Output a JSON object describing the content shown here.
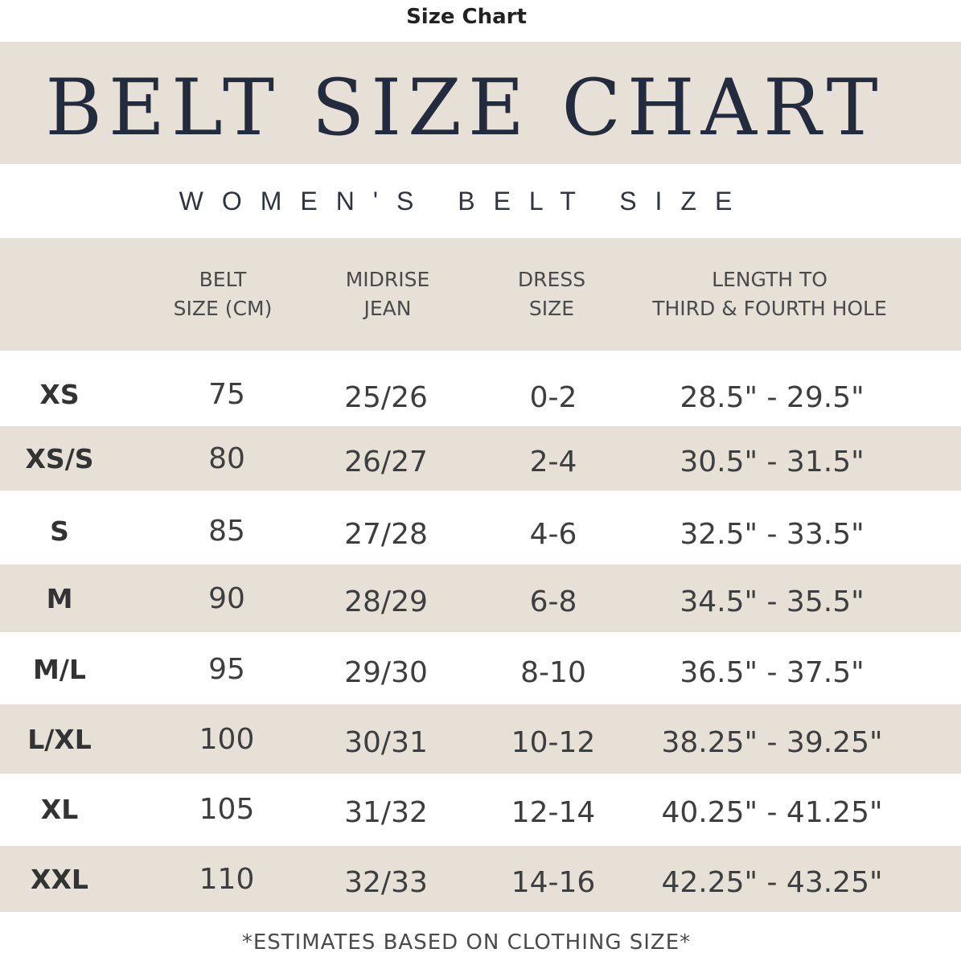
{
  "page_title": "Size Chart",
  "banner_title": "BELT SIZE CHART",
  "subtitle": "WOMEN'S BELT SIZE",
  "columns": [
    {
      "line1": "BELT",
      "line2": "SIZE (CM)"
    },
    {
      "line1": "MIDRISE",
      "line2": "JEAN"
    },
    {
      "line1": "DRESS",
      "line2": "SIZE"
    },
    {
      "line1": "LENGTH TO",
      "line2": "THIRD & FOURTH HOLE"
    }
  ],
  "rows": [
    {
      "size": "XS",
      "cm": "75",
      "jean": "25/26",
      "dress": "0-2",
      "length": "28.5\" - 29.5\""
    },
    {
      "size": "XS/S",
      "cm": "80",
      "jean": "26/27",
      "dress": "2-4",
      "length": "30.5\" - 31.5\""
    },
    {
      "size": "S",
      "cm": "85",
      "jean": "27/28",
      "dress": "4-6",
      "length": "32.5\" - 33.5\""
    },
    {
      "size": "M",
      "cm": "90",
      "jean": "28/29",
      "dress": "6-8",
      "length": "34.5\" - 35.5\""
    },
    {
      "size": "M/L",
      "cm": "95",
      "jean": "29/30",
      "dress": "8-10",
      "length": "36.5\" - 37.5\""
    },
    {
      "size": "L/XL",
      "cm": "100",
      "jean": "30/31",
      "dress": "10-12",
      "length": "38.25\" - 39.25\""
    },
    {
      "size": "XL",
      "cm": "105",
      "jean": "31/32",
      "dress": "12-14",
      "length": "40.25\" - 41.25\""
    },
    {
      "size": "XXL",
      "cm": "110",
      "jean": "32/33",
      "dress": "14-16",
      "length": "42.25\" - 43.25\""
    }
  ],
  "footnote": "*ESTIMATES BASED ON CLOTHING SIZE*",
  "colors": {
    "band": "#e7e0d7",
    "title": "#232b3e",
    "text": "#3e3e3e"
  }
}
